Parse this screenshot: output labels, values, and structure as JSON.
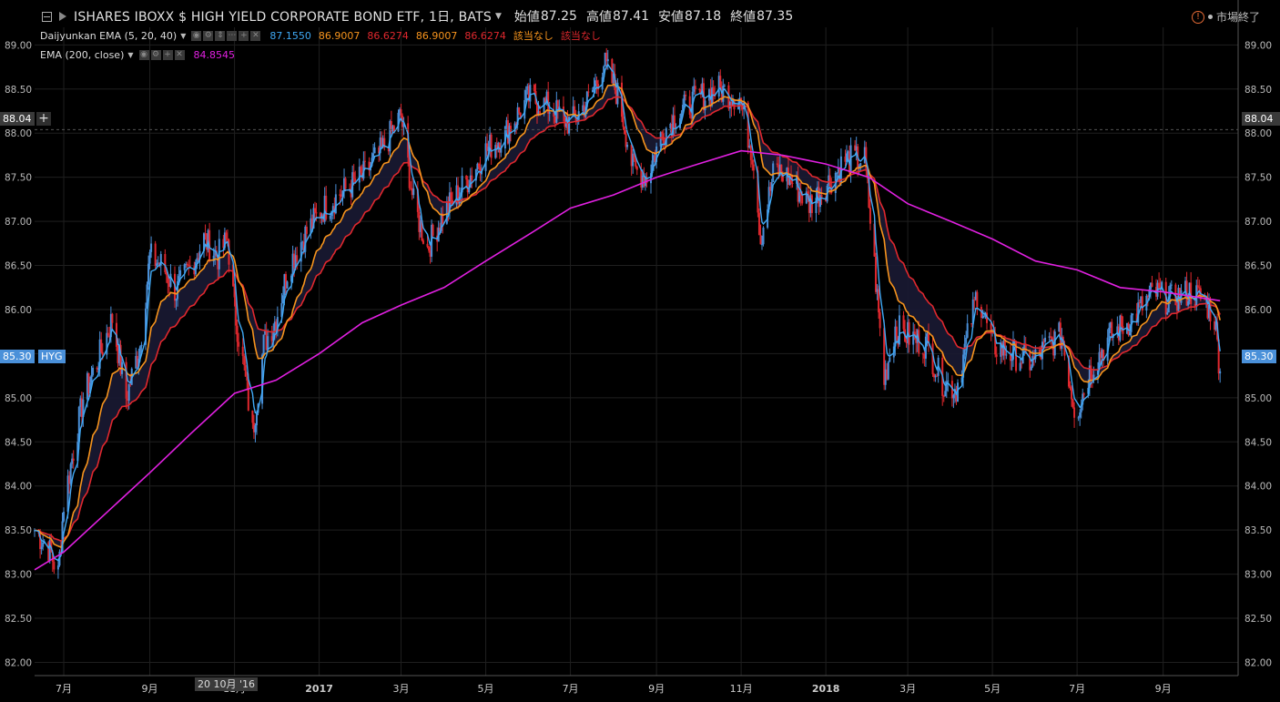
{
  "header": {
    "symbol": "ISHARES IBOXX $ HIGH YIELD CORPORATE BOND ETF, 1日, BATS",
    "open_label": "始値",
    "open": "87.25",
    "high_label": "高値",
    "high": "87.41",
    "low_label": "安値",
    "low": "87.18",
    "close_label": "終値",
    "close": "87.35",
    "market_status": "市場終了"
  },
  "legend": {
    "ema_ribbon_name": "Daijyunkan EMA (5, 20, 40)",
    "ema_ribbon_values": [
      {
        "text": "87.1550",
        "color": "#3fa9f5"
      },
      {
        "text": "86.9007",
        "color": "#f7941d"
      },
      {
        "text": "86.6274",
        "color": "#e0282e"
      },
      {
        "text": "86.9007",
        "color": "#f7941d"
      },
      {
        "text": "86.6274",
        "color": "#e0282e"
      },
      {
        "text": "該当なし",
        "color": "#f7941d"
      },
      {
        "text": "該当なし",
        "color": "#e0282e"
      }
    ],
    "ema200_name": "EMA (200, close)",
    "ema200_value": "84.8545",
    "ema200_color": "#e020e0"
  },
  "price_tags": {
    "crosshair_price": "88.04",
    "last_price": "85.30",
    "symbol_tag": "HYG",
    "last_price_color": "#4a90d9"
  },
  "crosshair_time_label": "20 10月 '16",
  "chart_data": {
    "type": "candlestick",
    "title": "ISHARES IBOXX $ HIGH YIELD CORPORATE BOND ETF, 1日, BATS",
    "y_ticks": [
      "89.00",
      "88.50",
      "88.00",
      "87.50",
      "87.00",
      "86.50",
      "86.00",
      "85.50",
      "85.00",
      "84.50",
      "84.00",
      "83.50",
      "83.00",
      "82.50",
      "82.00"
    ],
    "ylim": [
      81.85,
      89.2
    ],
    "x_ticks": [
      "7月",
      "9月",
      "11月",
      "2017",
      "3月",
      "5月",
      "7月",
      "9月",
      "11月",
      "2018",
      "3月",
      "5月",
      "7月",
      "9月"
    ],
    "x_tick_dates": [
      "2016-07-01",
      "2016-09-01",
      "2016-11-01",
      "2017-01-01",
      "2017-03-01",
      "2017-05-01",
      "2017-07-01",
      "2017-09-01",
      "2017-11-01",
      "2018-01-01",
      "2018-03-01",
      "2018-05-01",
      "2018-07-01",
      "2018-09-01"
    ],
    "xlim": [
      "2016-06-10",
      "2018-10-25"
    ],
    "close_path": [
      [
        "2016-06-10",
        83.5
      ],
      [
        "2016-06-20",
        83.3
      ],
      [
        "2016-06-27",
        83.0
      ],
      [
        "2016-07-01",
        83.8
      ],
      [
        "2016-07-15",
        85.0
      ],
      [
        "2016-07-25",
        85.4
      ],
      [
        "2016-08-05",
        85.9
      ],
      [
        "2016-08-15",
        85.0
      ],
      [
        "2016-08-25",
        85.6
      ],
      [
        "2016-09-01",
        86.6
      ],
      [
        "2016-09-10",
        86.5
      ],
      [
        "2016-09-20",
        86.2
      ],
      [
        "2016-10-01",
        86.5
      ],
      [
        "2016-10-10",
        86.8
      ],
      [
        "2016-10-20",
        86.6
      ],
      [
        "2016-10-27",
        86.8
      ],
      [
        "2016-11-01",
        86.0
      ],
      [
        "2016-11-08",
        85.3
      ],
      [
        "2016-11-14",
        84.6
      ],
      [
        "2016-11-22",
        85.6
      ],
      [
        "2016-12-01",
        85.9
      ],
      [
        "2016-12-10",
        86.5
      ],
      [
        "2016-12-20",
        86.8
      ],
      [
        "2017-01-01",
        87.1
      ],
      [
        "2017-01-15",
        87.3
      ],
      [
        "2017-02-01",
        87.5
      ],
      [
        "2017-02-15",
        87.8
      ],
      [
        "2017-03-01",
        88.2
      ],
      [
        "2017-03-10",
        87.2
      ],
      [
        "2017-03-20",
        86.7
      ],
      [
        "2017-04-01",
        87.1
      ],
      [
        "2017-04-15",
        87.4
      ],
      [
        "2017-05-01",
        87.8
      ],
      [
        "2017-05-15",
        88.0
      ],
      [
        "2017-06-01",
        88.4
      ],
      [
        "2017-06-15",
        88.3
      ],
      [
        "2017-07-01",
        88.1
      ],
      [
        "2017-07-15",
        88.4
      ],
      [
        "2017-07-25",
        88.8
      ],
      [
        "2017-08-05",
        88.4
      ],
      [
        "2017-08-15",
        87.6
      ],
      [
        "2017-08-25",
        87.5
      ],
      [
        "2017-09-05",
        88.0
      ],
      [
        "2017-09-15",
        88.2
      ],
      [
        "2017-10-01",
        88.4
      ],
      [
        "2017-10-15",
        88.5
      ],
      [
        "2017-10-31",
        88.4
      ],
      [
        "2017-11-10",
        87.7
      ],
      [
        "2017-11-15",
        86.8
      ],
      [
        "2017-11-25",
        87.6
      ],
      [
        "2017-12-05",
        87.5
      ],
      [
        "2017-12-20",
        87.2
      ],
      [
        "2018-01-01",
        87.4
      ],
      [
        "2018-01-15",
        87.7
      ],
      [
        "2018-01-29",
        87.7
      ],
      [
        "2018-02-05",
        86.5
      ],
      [
        "2018-02-12",
        85.2
      ],
      [
        "2018-02-20",
        85.8
      ],
      [
        "2018-03-01",
        85.7
      ],
      [
        "2018-03-15",
        85.6
      ],
      [
        "2018-03-25",
        85.2
      ],
      [
        "2018-04-05",
        85.1
      ],
      [
        "2018-04-20",
        86.2
      ],
      [
        "2018-05-01",
        85.6
      ],
      [
        "2018-05-15",
        85.5
      ],
      [
        "2018-05-30",
        85.4
      ],
      [
        "2018-06-10",
        85.6
      ],
      [
        "2018-06-20",
        85.7
      ],
      [
        "2018-06-30",
        84.8
      ],
      [
        "2018-07-10",
        85.3
      ],
      [
        "2018-07-25",
        85.7
      ],
      [
        "2018-08-10",
        85.9
      ],
      [
        "2018-08-25",
        86.2
      ],
      [
        "2018-09-05",
        86.1
      ],
      [
        "2018-09-20",
        86.2
      ],
      [
        "2018-10-01",
        86.1
      ],
      [
        "2018-10-08",
        85.9
      ],
      [
        "2018-10-12",
        85.3
      ]
    ],
    "ema200_path": [
      [
        "2016-06-10",
        83.05
      ],
      [
        "2016-07-01",
        83.25
      ],
      [
        "2016-08-01",
        83.7
      ],
      [
        "2016-09-01",
        84.15
      ],
      [
        "2016-10-01",
        84.6
      ],
      [
        "2016-11-01",
        85.05
      ],
      [
        "2016-12-01",
        85.2
      ],
      [
        "2017-01-01",
        85.5
      ],
      [
        "2017-02-01",
        85.85
      ],
      [
        "2017-03-01",
        86.05
      ],
      [
        "2017-04-01",
        86.25
      ],
      [
        "2017-05-01",
        86.55
      ],
      [
        "2017-06-01",
        86.85
      ],
      [
        "2017-07-01",
        87.15
      ],
      [
        "2017-08-01",
        87.3
      ],
      [
        "2017-09-01",
        87.5
      ],
      [
        "2017-10-01",
        87.65
      ],
      [
        "2017-11-01",
        87.8
      ],
      [
        "2017-12-01",
        87.75
      ],
      [
        "2018-01-01",
        87.65
      ],
      [
        "2018-02-01",
        87.5
      ],
      [
        "2018-03-01",
        87.2
      ],
      [
        "2018-04-01",
        87.0
      ],
      [
        "2018-05-01",
        86.8
      ],
      [
        "2018-06-01",
        86.55
      ],
      [
        "2018-07-01",
        86.45
      ],
      [
        "2018-08-01",
        86.25
      ],
      [
        "2018-09-01",
        86.2
      ],
      [
        "2018-10-12",
        86.1
      ]
    ],
    "series": [
      {
        "name": "EMA 5",
        "color": "#3fa9f5"
      },
      {
        "name": "EMA 20",
        "color": "#f7941d"
      },
      {
        "name": "EMA 40",
        "color": "#e0282e"
      },
      {
        "name": "EMA 200",
        "color": "#e020e0"
      }
    ],
    "up_color": "#4a90d9",
    "down_color": "#e0282e",
    "grid": true
  }
}
